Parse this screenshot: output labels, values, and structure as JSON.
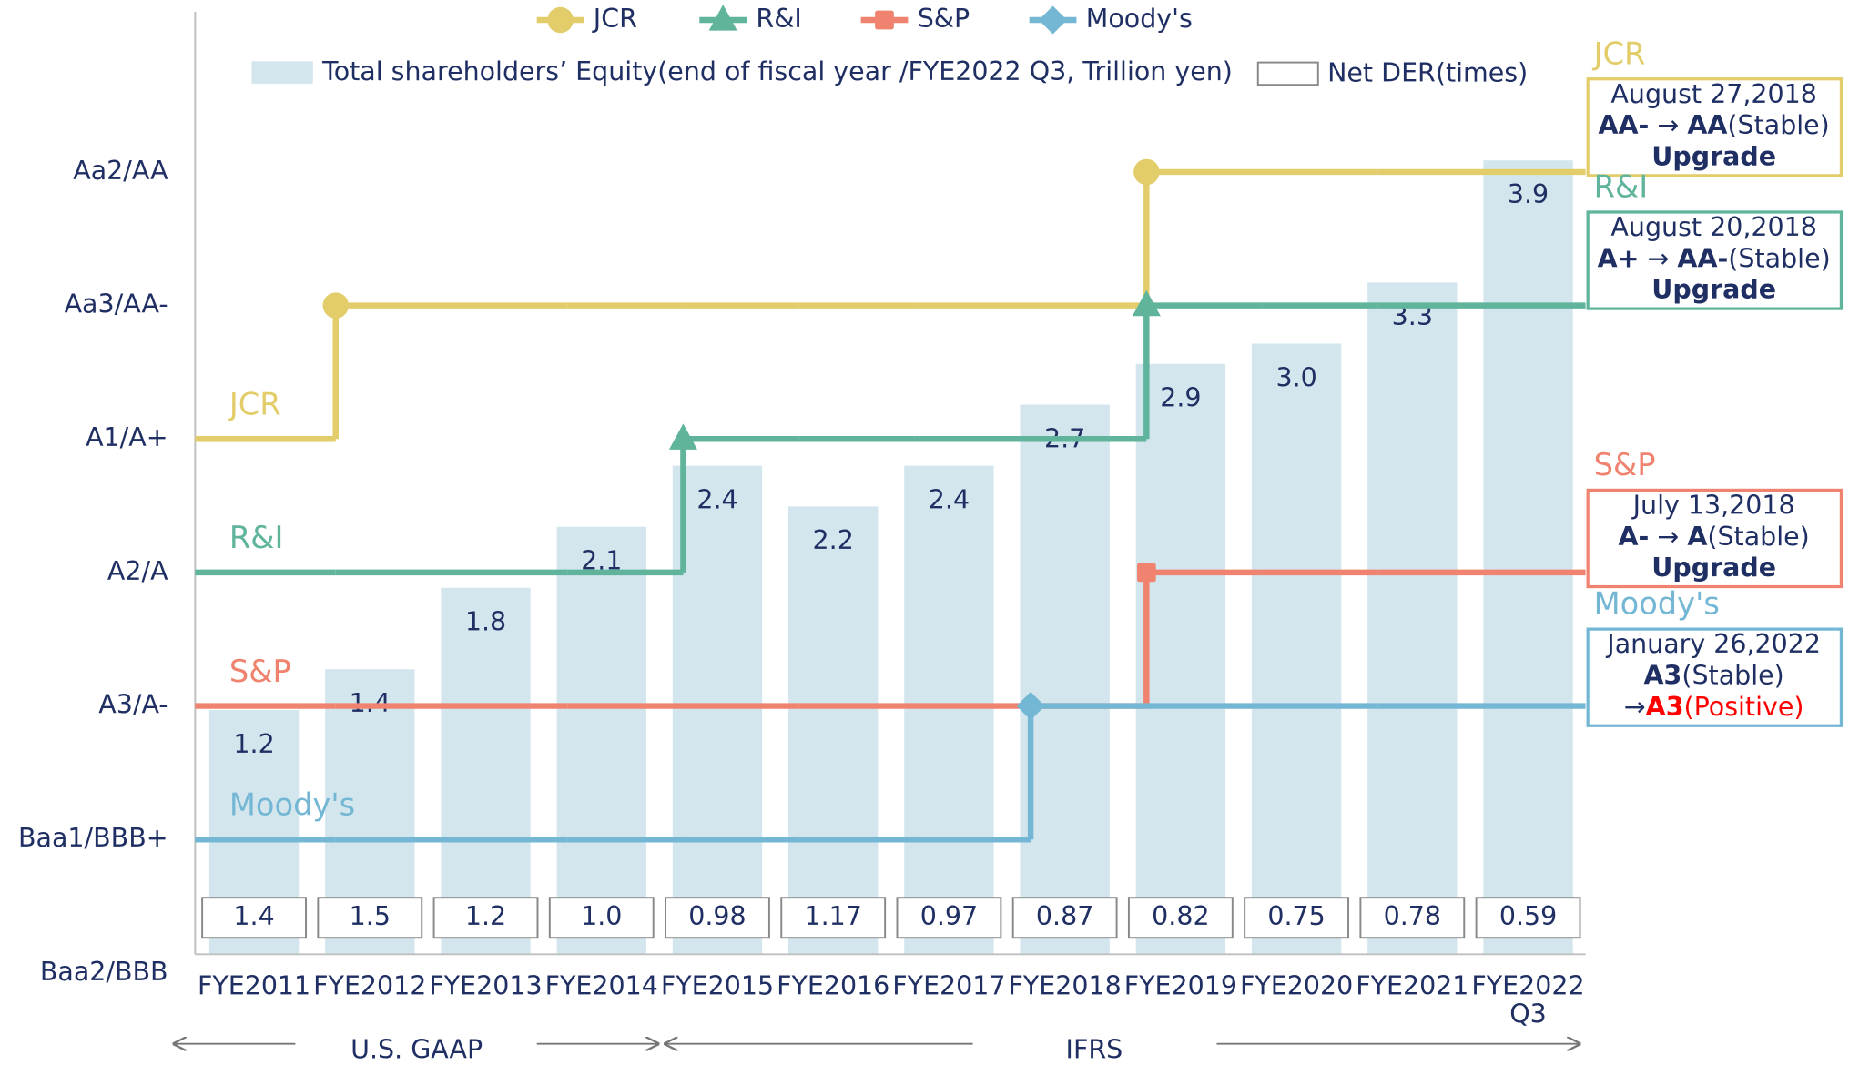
{
  "chart_data": {
    "type": "bar",
    "legend": "top",
    "categories": [
      "FYE2011",
      "FYE2012",
      "FYE2013",
      "FYE2014",
      "FYE2015",
      "FYE2016",
      "FYE2017",
      "FYE2018",
      "FYE2019",
      "FYE2020",
      "FYE2021",
      "FYE2022 Q3"
    ],
    "ylim": [
      0.14,
      7.2
    ],
    "yticks": [
      {
        "value": 0,
        "label": "Baa2/BBB"
      },
      {
        "value": 1,
        "label": "Baa1/BBB+"
      },
      {
        "value": 2,
        "label": "A3/A-"
      },
      {
        "value": 3,
        "label": "A2/A"
      },
      {
        "value": 4,
        "label": "A1/A+"
      },
      {
        "value": 5,
        "label": "Aa3/AA-"
      },
      {
        "value": 6,
        "label": "Aa2/AA"
      }
    ],
    "y2lim": [
      0,
      4.63
    ],
    "bars": {
      "name": "Total shareholders’ Equity(end of fiscal year /FYE2022 Q3, Trillion yen)",
      "color": "#d3e6ee",
      "axis": "y2",
      "values": [
        1.2,
        1.4,
        1.8,
        2.1,
        2.4,
        2.2,
        2.4,
        2.7,
        2.9,
        3.0,
        3.3,
        3.9
      ],
      "value_labels": [
        "1.2",
        "1.4",
        "1.8",
        "2.1",
        "2.4",
        "2.2",
        "2.4",
        "2.7",
        "2.9",
        "3.0",
        "3.3",
        "3.9"
      ]
    },
    "table_row": {
      "name": "Net DER(times)",
      "values": [
        1.4,
        1.5,
        1.2,
        1.0,
        0.98,
        1.17,
        0.97,
        0.87,
        0.82,
        0.75,
        0.78,
        0.59
      ],
      "value_labels": [
        "1.4",
        "1.5",
        "1.2",
        "1.0",
        "0.98",
        "1.17",
        "0.97",
        "0.87",
        "0.82",
        "0.75",
        "0.78",
        "0.59"
      ]
    },
    "series": [
      {
        "name": "JCR",
        "color": "#e2cd6a",
        "marker": "circle",
        "values": [
          4,
          5,
          5,
          5,
          5,
          5,
          5,
          5,
          6,
          6,
          6,
          6
        ],
        "annotation": [
          [
            {
              "text": "August 27,2018"
            }
          ],
          [
            {
              "text": "AA-",
              "weight": "bold"
            },
            {
              "text": " → "
            },
            {
              "text": "AA",
              "weight": "bold"
            },
            {
              "text": "(Stable)"
            }
          ],
          [
            {
              "text": "Upgrade",
              "weight": "bold"
            }
          ]
        ]
      },
      {
        "name": "R&I",
        "color": "#5fb49b",
        "marker": "triangle",
        "values": [
          3,
          3,
          3,
          3,
          4,
          4,
          4,
          4,
          5,
          5,
          5,
          5
        ],
        "annotation": [
          [
            {
              "text": "August 20,2018"
            }
          ],
          [
            {
              "text": "A+",
              "weight": "bold"
            },
            {
              "text": " → "
            },
            {
              "text": "AA-",
              "weight": "bold"
            },
            {
              "text": "(Stable)"
            }
          ],
          [
            {
              "text": "Upgrade",
              "weight": "bold"
            }
          ]
        ]
      },
      {
        "name": "S&P",
        "color": "#f0836f",
        "marker": "square",
        "values": [
          2,
          2,
          2,
          2,
          2,
          2,
          2,
          2,
          3,
          3,
          3,
          3
        ],
        "annotation": [
          [
            {
              "text": "July 13,2018"
            }
          ],
          [
            {
              "text": "A-",
              "weight": "bold"
            },
            {
              "text": " → "
            },
            {
              "text": "A",
              "weight": "bold"
            },
            {
              "text": "(Stable)"
            }
          ],
          [
            {
              "text": "Upgrade",
              "weight": "bold"
            }
          ]
        ]
      },
      {
        "name": "Moody's",
        "color": "#74b7d4",
        "marker": "diamond",
        "values": [
          1,
          1,
          1,
          1,
          1,
          1,
          1,
          2,
          2,
          2,
          2,
          2
        ],
        "annotation": [
          [
            {
              "text": "January 26,2022"
            }
          ],
          [
            {
              "text": "A3",
              "weight": "bold"
            },
            {
              "text": "(Stable)"
            }
          ],
          [
            {
              "text": "→"
            },
            {
              "text": "A3",
              "weight": "bold",
              "color": "#ff0000"
            },
            {
              "text": "(Positive)",
              "color": "#ff0000"
            }
          ]
        ]
      }
    ],
    "regions": [
      {
        "label": "U.S. GAAP"
      },
      {
        "label": "IFRS"
      }
    ]
  }
}
